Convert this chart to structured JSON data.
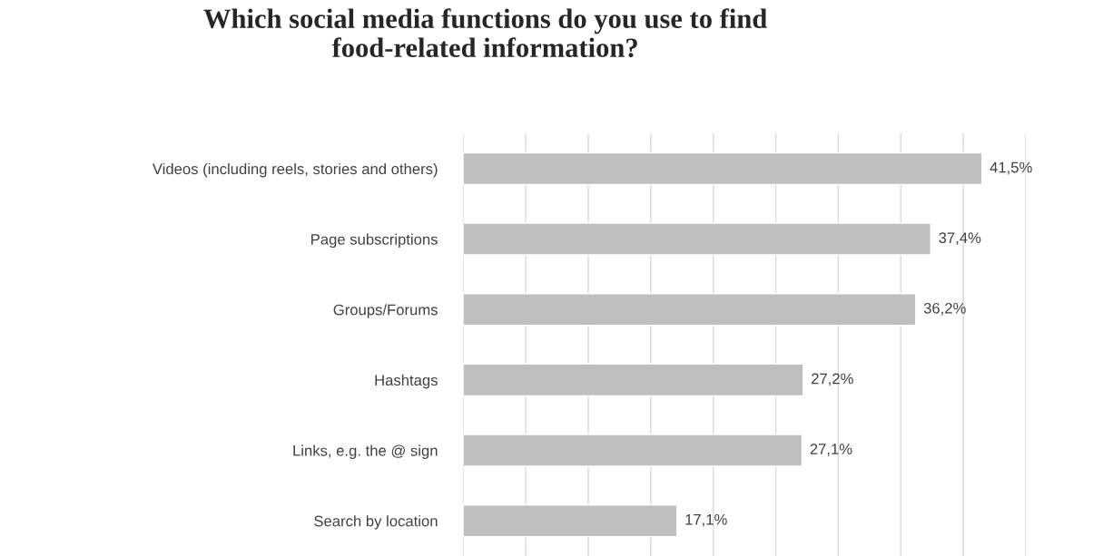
{
  "chart_data": {
    "type": "bar",
    "orientation": "horizontal",
    "title": "Which social media functions do you use to find\nfood-related information?",
    "categories": [
      "Videos (including reels, stories and others)",
      "Page subscriptions",
      "Groups/Forums",
      "Hashtags",
      "Links, e.g. the @ sign",
      "Search by location"
    ],
    "values": [
      41.5,
      37.4,
      36.2,
      27.2,
      27.1,
      17.1
    ],
    "value_labels": [
      "41,5%",
      "37,4%",
      "36,2%",
      "27,2%",
      "27,1%",
      "17,1%"
    ],
    "color": "#bfbfbf",
    "xlim": [
      0,
      45
    ],
    "xticks": [
      {
        "value": 0,
        "label": null
      },
      {
        "value": 5,
        "label": null
      },
      {
        "value": 10,
        "label": null
      },
      {
        "value": 15,
        "label": null
      },
      {
        "value": 20,
        "label": null
      },
      {
        "value": 25,
        "label": null
      },
      {
        "value": 30,
        "label": null
      },
      {
        "value": 35,
        "label": null
      },
      {
        "value": 40,
        "label": null
      },
      {
        "value": 45,
        "label": null
      }
    ],
    "tick_labels": "y",
    "grid": "x",
    "legend": false
  }
}
